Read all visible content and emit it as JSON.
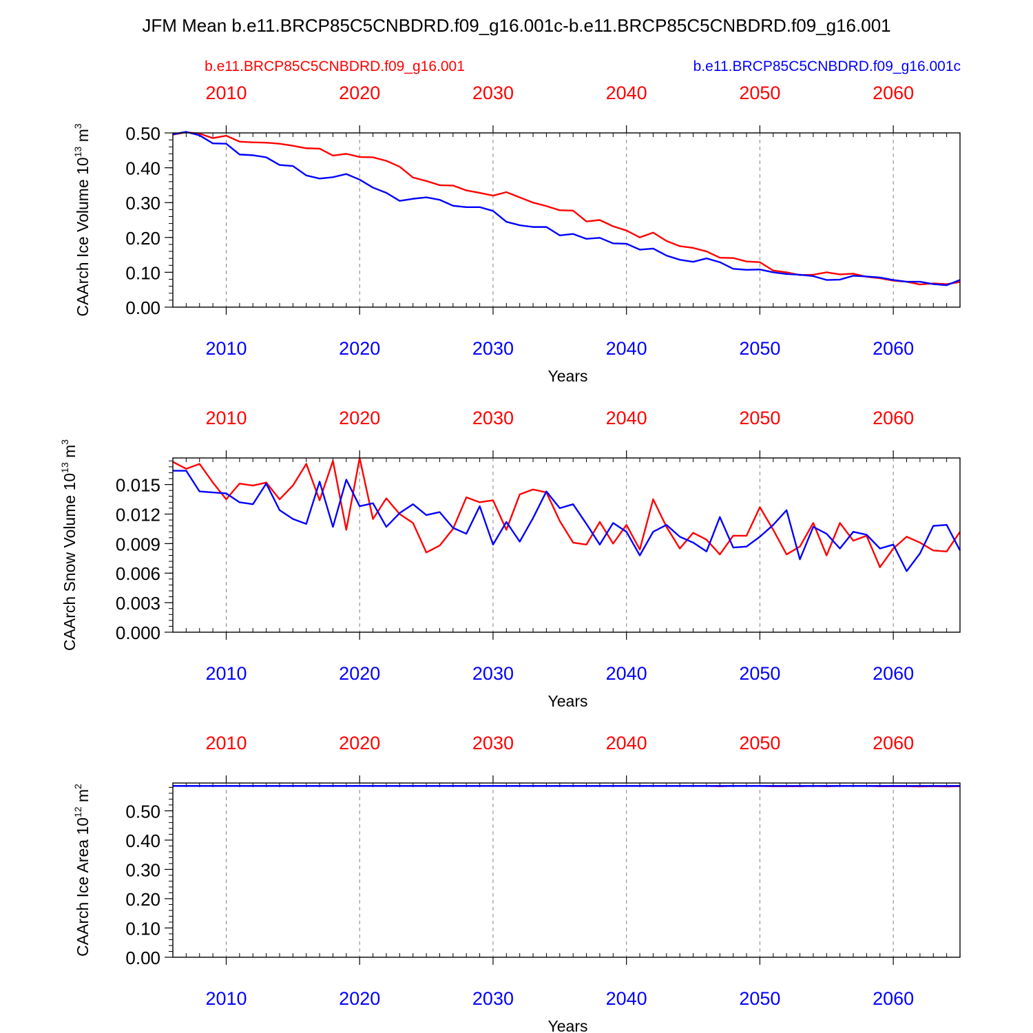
{
  "title": "JFM Mean b.e11.BRCP85C5CNBDRD.f09_g16.001c-b.e11.BRCP85C5CNBDRD.f09_g16.001",
  "legend": {
    "left": "b.e11.BRCP85C5CNBDRD.f09_g16.001",
    "right": "b.e11.BRCP85C5CNBDRD.f09_g16.001c"
  },
  "colors": {
    "series_red": "#ff0000",
    "series_blue": "#0000ff",
    "grid": "#808080"
  },
  "chart_data": [
    {
      "type": "line",
      "ylabel_main": "CAArch Ice Volume 10",
      "ylabel_exp": "13",
      "ylabel_unit": " m",
      "ylabel_unit_exp": "3",
      "xlabel": "Years",
      "xlim": [
        2006,
        2065
      ],
      "ylim": [
        0,
        0.5
      ],
      "yticks": [
        0,
        0.1,
        0.2,
        0.3,
        0.4,
        0.5
      ],
      "ytick_labels": [
        "0.00",
        "0.10",
        "0.20",
        "0.30",
        "0.40",
        "0.50"
      ],
      "yminor_step": 0.02,
      "xticks": [
        2010,
        2020,
        2030,
        2040,
        2050,
        2060
      ],
      "xtick_labels": [
        "2010",
        "2020",
        "2030",
        "2040",
        "2050",
        "2060"
      ],
      "grid": "vertical dashed",
      "x_start": 2006,
      "series": [
        {
          "name": "b.e11.BRCP85C5CNBDRD.f09_g16.001",
          "color": "#ff0000",
          "values": [
            0.495,
            0.502,
            0.498,
            0.485,
            0.492,
            0.475,
            0.473,
            0.472,
            0.469,
            0.463,
            0.456,
            0.455,
            0.435,
            0.44,
            0.431,
            0.43,
            0.42,
            0.403,
            0.372,
            0.362,
            0.35,
            0.349,
            0.335,
            0.328,
            0.32,
            0.33,
            0.315,
            0.3,
            0.29,
            0.278,
            0.277,
            0.246,
            0.25,
            0.232,
            0.22,
            0.2,
            0.214,
            0.19,
            0.175,
            0.17,
            0.16,
            0.142,
            0.141,
            0.131,
            0.129,
            0.105,
            0.1,
            0.092,
            0.093,
            0.1,
            0.094,
            0.096,
            0.087,
            0.083,
            0.076,
            0.073,
            0.065,
            0.068,
            0.066,
            0.072
          ]
        },
        {
          "name": "b.e11.BRCP85C5CNBDRD.f09_g16.001c",
          "color": "#0000ff",
          "values": [
            0.496,
            0.503,
            0.493,
            0.47,
            0.469,
            0.438,
            0.436,
            0.43,
            0.408,
            0.405,
            0.378,
            0.369,
            0.373,
            0.382,
            0.366,
            0.343,
            0.328,
            0.305,
            0.311,
            0.315,
            0.308,
            0.291,
            0.287,
            0.287,
            0.276,
            0.245,
            0.235,
            0.23,
            0.23,
            0.206,
            0.21,
            0.196,
            0.199,
            0.183,
            0.182,
            0.165,
            0.168,
            0.148,
            0.136,
            0.13,
            0.14,
            0.129,
            0.11,
            0.107,
            0.108,
            0.1,
            0.095,
            0.093,
            0.089,
            0.078,
            0.079,
            0.09,
            0.088,
            0.085,
            0.078,
            0.073,
            0.073,
            0.066,
            0.063,
            0.078
          ]
        }
      ]
    },
    {
      "type": "line",
      "ylabel_main": "CAArch Snow Volume 10",
      "ylabel_exp": "13",
      "ylabel_unit": " m",
      "ylabel_unit_exp": "3",
      "xlabel": "Years",
      "xlim": [
        2006,
        2065
      ],
      "ylim": [
        0,
        0.0177
      ],
      "yticks": [
        0,
        0.003,
        0.006,
        0.009,
        0.012,
        0.015
      ],
      "ytick_labels": [
        "0.000",
        "0.003",
        "0.006",
        "0.009",
        "0.012",
        "0.015"
      ],
      "yminor_step": 0.0006,
      "xticks": [
        2010,
        2020,
        2030,
        2040,
        2050,
        2060
      ],
      "xtick_labels": [
        "2010",
        "2020",
        "2030",
        "2040",
        "2050",
        "2060"
      ],
      "grid": "vertical dashed",
      "x_start": 2006,
      "series": [
        {
          "name": "b.e11.BRCP85C5CNBDRD.f09_g16.001",
          "color": "#ff0000",
          "values": [
            0.0173,
            0.0166,
            0.0171,
            0.0152,
            0.0135,
            0.0151,
            0.0149,
            0.0152,
            0.0135,
            0.0149,
            0.0171,
            0.0134,
            0.0174,
            0.0104,
            0.0177,
            0.0115,
            0.0136,
            0.012,
            0.0111,
            0.0081,
            0.0088,
            0.0105,
            0.0137,
            0.0132,
            0.0134,
            0.0104,
            0.014,
            0.0145,
            0.0142,
            0.0113,
            0.0091,
            0.0089,
            0.0112,
            0.009,
            0.0109,
            0.0084,
            0.0135,
            0.0107,
            0.0085,
            0.0101,
            0.0094,
            0.0079,
            0.0098,
            0.0098,
            0.0127,
            0.0104,
            0.0079,
            0.0087,
            0.0111,
            0.0078,
            0.0111,
            0.0093,
            0.0098,
            0.0066,
            0.0085,
            0.0097,
            0.0091,
            0.0083,
            0.0082,
            0.0102
          ]
        },
        {
          "name": "b.e11.BRCP85C5CNBDRD.f09_g16.001c",
          "color": "#0000ff",
          "values": [
            0.0164,
            0.0164,
            0.0143,
            0.0142,
            0.0141,
            0.0132,
            0.013,
            0.0151,
            0.0124,
            0.0115,
            0.011,
            0.0153,
            0.0107,
            0.0155,
            0.0128,
            0.0131,
            0.0107,
            0.0121,
            0.013,
            0.0119,
            0.0122,
            0.0106,
            0.01,
            0.0128,
            0.0089,
            0.0112,
            0.0092,
            0.0116,
            0.0143,
            0.0126,
            0.013,
            0.011,
            0.0089,
            0.0111,
            0.0102,
            0.0078,
            0.0102,
            0.0109,
            0.0097,
            0.0091,
            0.0082,
            0.0117,
            0.0086,
            0.0087,
            0.0097,
            0.0109,
            0.0124,
            0.0074,
            0.0107,
            0.01,
            0.0085,
            0.0102,
            0.0099,
            0.0085,
            0.0089,
            0.0062,
            0.008,
            0.0108,
            0.0109,
            0.0083
          ]
        }
      ]
    },
    {
      "type": "line",
      "ylabel_main": "CAArch Ice Area 10",
      "ylabel_exp": "12",
      "ylabel_unit": " m",
      "ylabel_unit_exp": "2",
      "xlabel": "Years",
      "xlim": [
        2006,
        2065
      ],
      "ylim": [
        0,
        0.595
      ],
      "yticks": [
        0,
        0.1,
        0.2,
        0.3,
        0.4,
        0.5
      ],
      "ytick_labels": [
        "0.00",
        "0.10",
        "0.20",
        "0.30",
        "0.40",
        "0.50"
      ],
      "yminor_step": 0.02,
      "xticks": [
        2010,
        2020,
        2030,
        2040,
        2050,
        2060
      ],
      "xtick_labels": [
        "2010",
        "2020",
        "2030",
        "2040",
        "2050",
        "2060"
      ],
      "grid": "vertical dashed",
      "x_start": 2006,
      "series": [
        {
          "name": "b.e11.BRCP85C5CNBDRD.f09_g16.001",
          "color": "#ff0000",
          "values": [
            0.585,
            0.585,
            0.585,
            0.585,
            0.585,
            0.585,
            0.585,
            0.585,
            0.585,
            0.585,
            0.585,
            0.585,
            0.585,
            0.585,
            0.585,
            0.585,
            0.585,
            0.585,
            0.585,
            0.585,
            0.585,
            0.585,
            0.585,
            0.585,
            0.585,
            0.585,
            0.585,
            0.585,
            0.585,
            0.585,
            0.585,
            0.585,
            0.585,
            0.585,
            0.585,
            0.585,
            0.585,
            0.585,
            0.585,
            0.585,
            0.585,
            0.584,
            0.585,
            0.585,
            0.585,
            0.584,
            0.584,
            0.584,
            0.585,
            0.584,
            0.585,
            0.585,
            0.585,
            0.584,
            0.584,
            0.584,
            0.583,
            0.584,
            0.583,
            0.584
          ]
        },
        {
          "name": "b.e11.BRCP85C5CNBDRD.f09_g16.001c",
          "color": "#0000ff",
          "values": [
            0.585,
            0.585,
            0.585,
            0.585,
            0.585,
            0.585,
            0.585,
            0.585,
            0.585,
            0.585,
            0.585,
            0.585,
            0.585,
            0.585,
            0.585,
            0.585,
            0.585,
            0.585,
            0.585,
            0.585,
            0.585,
            0.585,
            0.585,
            0.585,
            0.585,
            0.585,
            0.585,
            0.585,
            0.585,
            0.585,
            0.585,
            0.585,
            0.585,
            0.585,
            0.585,
            0.585,
            0.585,
            0.585,
            0.585,
            0.585,
            0.585,
            0.585,
            0.585,
            0.585,
            0.585,
            0.585,
            0.585,
            0.585,
            0.585,
            0.585,
            0.585,
            0.585,
            0.585,
            0.585,
            0.585,
            0.585,
            0.585,
            0.585,
            0.585,
            0.585
          ]
        }
      ]
    }
  ]
}
